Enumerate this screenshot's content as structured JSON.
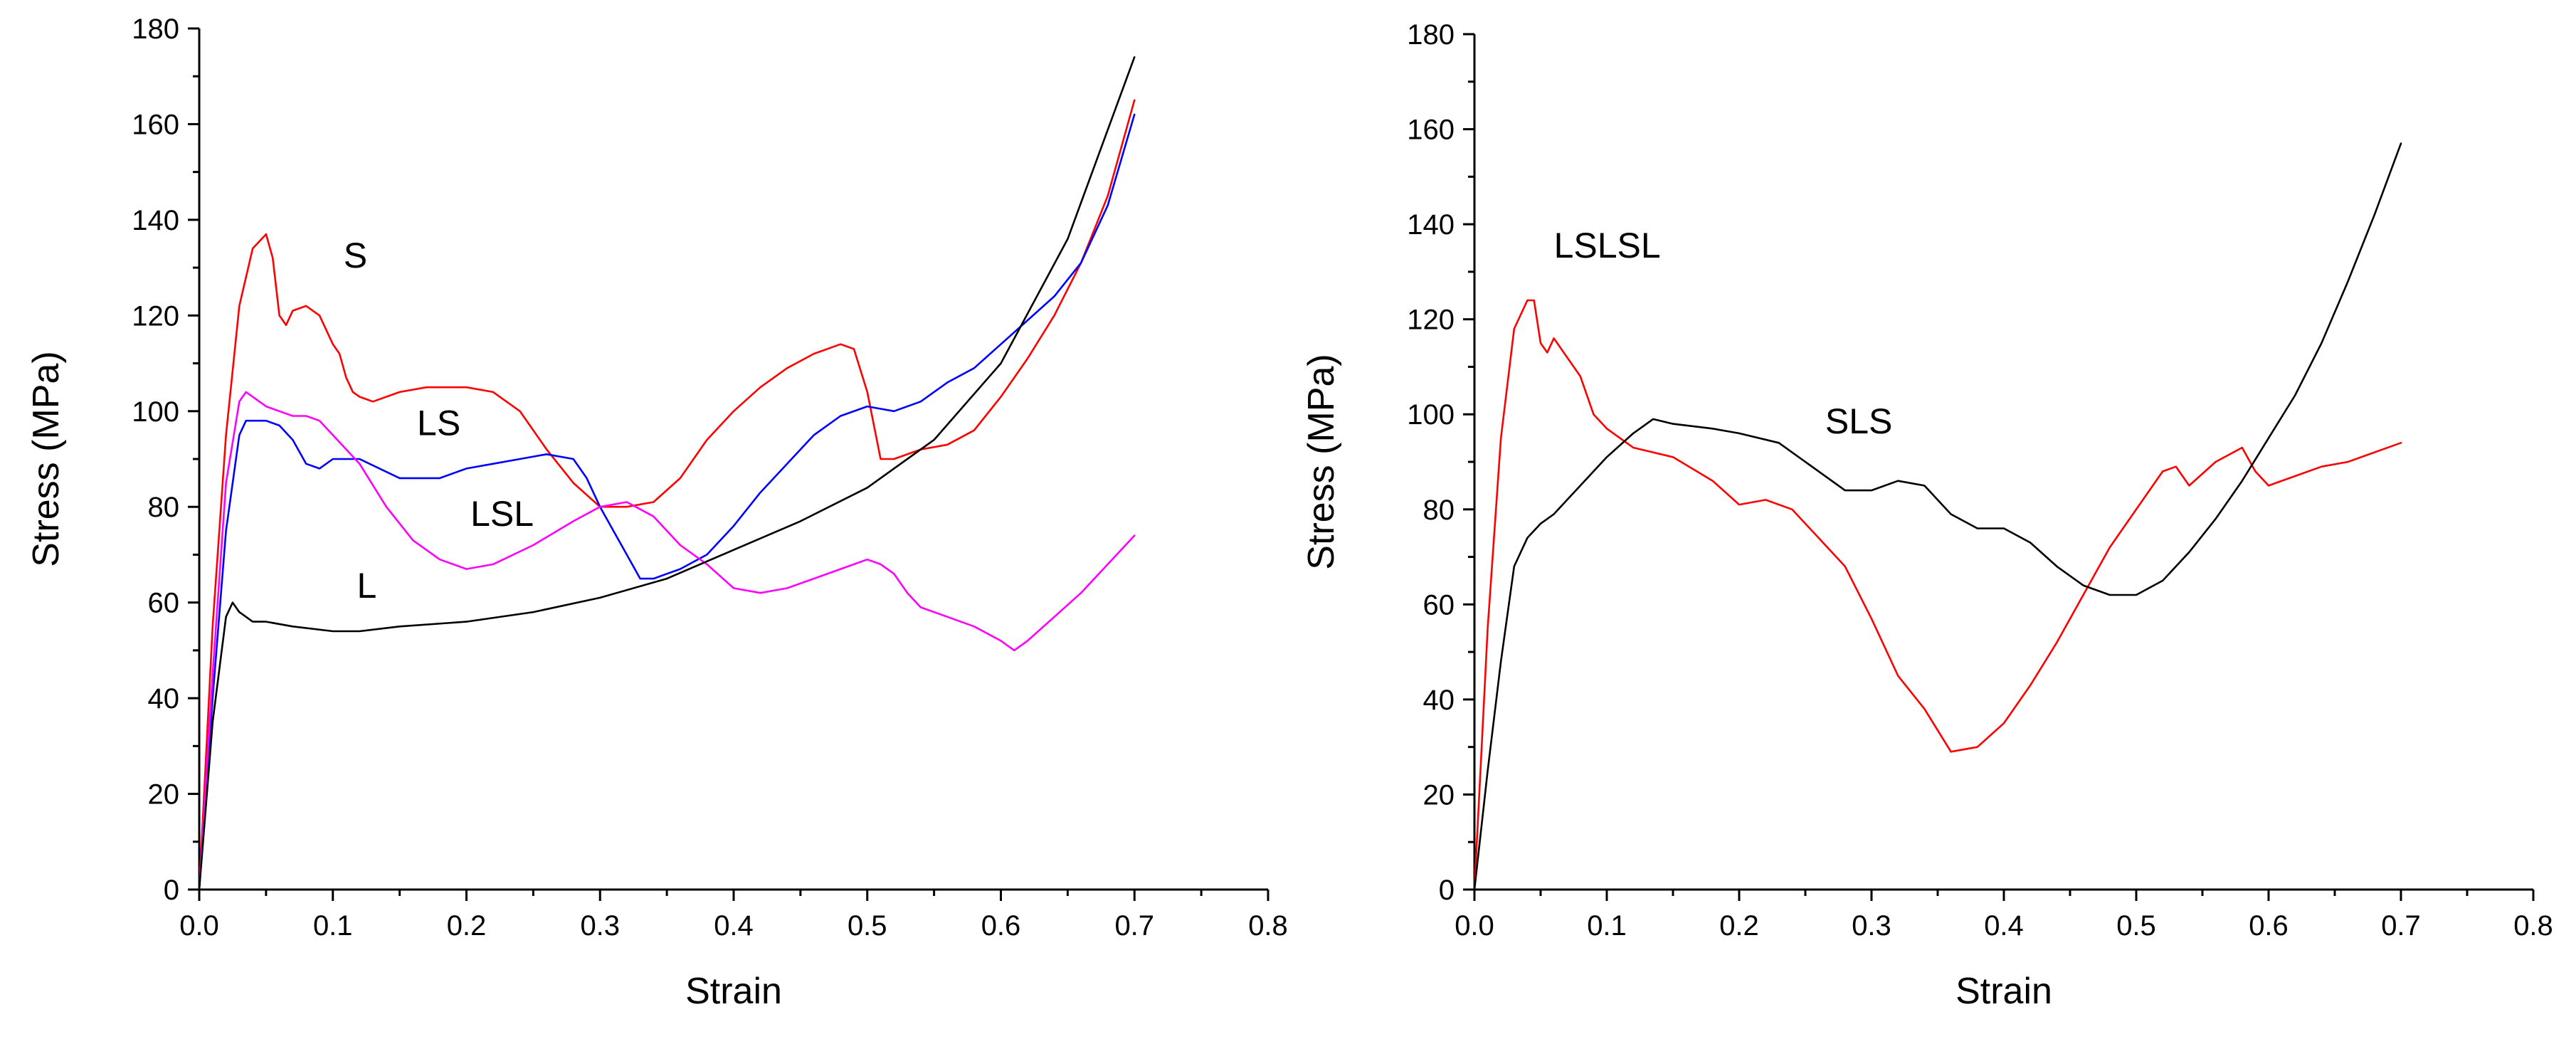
{
  "chart_data": [
    {
      "type": "line",
      "title": "",
      "xlabel": "Strain",
      "ylabel": "Stress (MPa)",
      "xlim": [
        0,
        0.8
      ],
      "ylim": [
        0,
        180
      ],
      "xticks": [
        "0.0",
        "0.1",
        "0.2",
        "0.3",
        "0.4",
        "0.5",
        "0.6",
        "0.7",
        "0.8"
      ],
      "yticks": [
        "0",
        "20",
        "40",
        "60",
        "80",
        "100",
        "120",
        "140",
        "160",
        "180"
      ],
      "grid": false,
      "series": [
        {
          "name": "S",
          "color": "#ff0000",
          "x": [
            0,
            0.01,
            0.02,
            0.03,
            0.04,
            0.05,
            0.055,
            0.06,
            0.065,
            0.07,
            0.08,
            0.09,
            0.1,
            0.105,
            0.11,
            0.115,
            0.12,
            0.13,
            0.15,
            0.17,
            0.2,
            0.22,
            0.24,
            0.26,
            0.28,
            0.3,
            0.32,
            0.34,
            0.36,
            0.38,
            0.4,
            0.42,
            0.44,
            0.46,
            0.48,
            0.49,
            0.5,
            0.51,
            0.52,
            0.54,
            0.56,
            0.58,
            0.6,
            0.62,
            0.64,
            0.66,
            0.68,
            0.7
          ],
          "y": [
            0,
            55,
            95,
            122,
            134,
            137,
            132,
            120,
            118,
            121,
            122,
            120,
            114,
            112,
            107,
            104,
            103,
            102,
            104,
            105,
            105,
            104,
            100,
            92,
            85,
            80,
            80,
            81,
            86,
            94,
            100,
            105,
            109,
            112,
            114,
            113,
            104,
            90,
            90,
            92,
            93,
            96,
            103,
            111,
            120,
            131,
            145,
            165
          ]
        },
        {
          "name": "LS",
          "color": "#0000ff",
          "x": [
            0,
            0.01,
            0.02,
            0.03,
            0.035,
            0.04,
            0.05,
            0.06,
            0.07,
            0.08,
            0.09,
            0.1,
            0.12,
            0.15,
            0.18,
            0.2,
            0.22,
            0.24,
            0.26,
            0.28,
            0.29,
            0.3,
            0.32,
            0.33,
            0.34,
            0.35,
            0.36,
            0.38,
            0.4,
            0.42,
            0.44,
            0.46,
            0.48,
            0.5,
            0.52,
            0.54,
            0.56,
            0.58,
            0.6,
            0.62,
            0.64,
            0.66,
            0.68,
            0.7
          ],
          "y": [
            0,
            40,
            75,
            95,
            98,
            98,
            98,
            97,
            94,
            89,
            88,
            90,
            90,
            86,
            86,
            88,
            89,
            90,
            91,
            90,
            86,
            80,
            70,
            65,
            65,
            66,
            67,
            70,
            76,
            83,
            89,
            95,
            99,
            101,
            100,
            102,
            106,
            109,
            114,
            119,
            124,
            131,
            143,
            162
          ]
        },
        {
          "name": "LSL",
          "color": "#ff00ff",
          "x": [
            0,
            0.01,
            0.02,
            0.03,
            0.035,
            0.04,
            0.05,
            0.06,
            0.07,
            0.08,
            0.09,
            0.1,
            0.12,
            0.14,
            0.16,
            0.18,
            0.2,
            0.22,
            0.25,
            0.28,
            0.3,
            0.32,
            0.34,
            0.36,
            0.38,
            0.4,
            0.42,
            0.44,
            0.46,
            0.48,
            0.5,
            0.51,
            0.52,
            0.53,
            0.54,
            0.56,
            0.58,
            0.6,
            0.61,
            0.62,
            0.64,
            0.66,
            0.68,
            0.7
          ],
          "y": [
            0,
            45,
            85,
            102,
            104,
            103,
            101,
            100,
            99,
            99,
            98,
            95,
            89,
            80,
            73,
            69,
            67,
            68,
            72,
            77,
            80,
            81,
            78,
            72,
            68,
            63,
            62,
            63,
            65,
            67,
            69,
            68,
            66,
            62,
            59,
            57,
            55,
            52,
            50,
            52,
            57,
            62,
            68,
            74
          ]
        },
        {
          "name": "L",
          "color": "#000000",
          "x": [
            0,
            0.01,
            0.02,
            0.025,
            0.03,
            0.04,
            0.05,
            0.07,
            0.1,
            0.12,
            0.15,
            0.2,
            0.25,
            0.3,
            0.35,
            0.4,
            0.45,
            0.5,
            0.55,
            0.6,
            0.65,
            0.7
          ],
          "y": [
            0,
            35,
            57,
            60,
            58,
            56,
            56,
            55,
            54,
            54,
            55,
            56,
            58,
            61,
            65,
            71,
            77,
            84,
            94,
            110,
            136,
            174
          ]
        }
      ],
      "annotations": [
        {
          "text": "S",
          "x": 0.108,
          "y": 130
        },
        {
          "text": "LS",
          "x": 0.163,
          "y": 95
        },
        {
          "text": "LSL",
          "x": 0.203,
          "y": 76
        },
        {
          "text": "L",
          "x": 0.118,
          "y": 61
        }
      ]
    },
    {
      "type": "line",
      "title": "",
      "xlabel": "Strain",
      "ylabel": "Stress (MPa)",
      "xlim": [
        0,
        0.8
      ],
      "ylim": [
        0,
        180
      ],
      "xticks": [
        "0.0",
        "0.1",
        "0.2",
        "0.3",
        "0.4",
        "0.5",
        "0.6",
        "0.7",
        "0.8"
      ],
      "yticks": [
        "0",
        "20",
        "40",
        "60",
        "80",
        "100",
        "120",
        "140",
        "160",
        "180"
      ],
      "grid": false,
      "series": [
        {
          "name": "LSLSL",
          "color": "#ff0000",
          "x": [
            0,
            0.01,
            0.02,
            0.03,
            0.04,
            0.045,
            0.05,
            0.055,
            0.06,
            0.065,
            0.07,
            0.08,
            0.09,
            0.1,
            0.12,
            0.15,
            0.18,
            0.2,
            0.22,
            0.24,
            0.26,
            0.28,
            0.3,
            0.32,
            0.34,
            0.36,
            0.38,
            0.4,
            0.42,
            0.44,
            0.46,
            0.48,
            0.5,
            0.52,
            0.53,
            0.54,
            0.56,
            0.58,
            0.59,
            0.6,
            0.62,
            0.64,
            0.66,
            0.68,
            0.7
          ],
          "y": [
            0,
            55,
            95,
            118,
            124,
            124,
            115,
            113,
            116,
            114,
            112,
            108,
            100,
            97,
            93,
            91,
            86,
            81,
            82,
            80,
            74,
            68,
            57,
            45,
            38,
            29,
            30,
            35,
            43,
            52,
            62,
            72,
            80,
            88,
            89,
            85,
            90,
            93,
            88,
            85,
            87,
            89,
            90,
            92,
            94
          ]
        },
        {
          "name": "SLS",
          "color": "#000000",
          "x": [
            0,
            0.01,
            0.02,
            0.03,
            0.04,
            0.05,
            0.06,
            0.07,
            0.08,
            0.1,
            0.12,
            0.135,
            0.15,
            0.18,
            0.2,
            0.23,
            0.25,
            0.28,
            0.3,
            0.32,
            0.34,
            0.36,
            0.38,
            0.4,
            0.42,
            0.44,
            0.46,
            0.48,
            0.5,
            0.52,
            0.54,
            0.56,
            0.58,
            0.6,
            0.62,
            0.64,
            0.66,
            0.68,
            0.7
          ],
          "y": [
            0,
            25,
            48,
            68,
            74,
            77,
            79,
            82,
            85,
            91,
            96,
            99,
            98,
            97,
            96,
            94,
            90,
            84,
            84,
            86,
            85,
            79,
            76,
            76,
            73,
            68,
            64,
            62,
            62,
            65,
            71,
            78,
            86,
            95,
            104,
            115,
            128,
            142,
            157
          ]
        }
      ],
      "annotations": [
        {
          "text": "LSLSL",
          "x": 0.06,
          "y": 133
        },
        {
          "text": "SLS",
          "x": 0.265,
          "y": 96
        }
      ]
    }
  ]
}
